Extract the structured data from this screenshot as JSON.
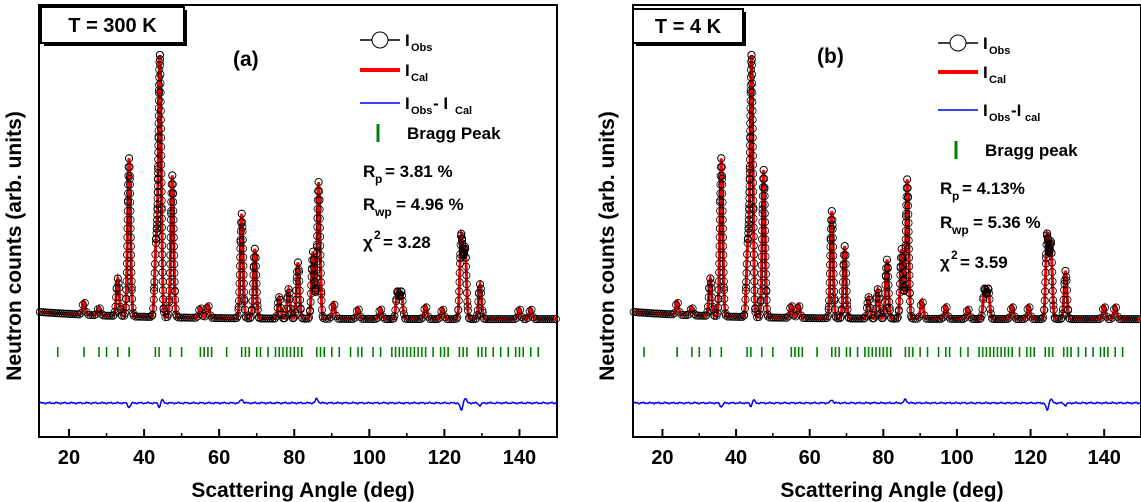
{
  "chart_data": [
    {
      "type": "line",
      "panel_label": "(a)",
      "temperature_label": "T = 300 K",
      "xlabel": "Scattering Angle (deg)",
      "ylabel": "Neutron counts (arb. units)",
      "xlim": [
        12,
        150
      ],
      "xticks": [
        20,
        40,
        60,
        80,
        100,
        120,
        140
      ],
      "legend": {
        "obs": "I",
        "obs_sub": "Obs",
        "cal": "I",
        "cal_sub": "Cal",
        "diff_a": "I",
        "diff_a_sub": "Obs",
        "diff_sep": "- I",
        "diff_b_sub": "Cal",
        "bragg": "Bragg Peak"
      },
      "stats": {
        "rp_label": "R",
        "rp_sub": "p",
        "rp_value": "= 3.81 %",
        "rwp_label": "R",
        "rwp_sub": "wp",
        "rwp_value": "= 4.96 %",
        "chi_label": "χ",
        "chi_sup": "2",
        "chi_value": "= 3.28"
      },
      "baseline": 0.06,
      "peaks": [
        {
          "x": 24.0,
          "h": 0.05
        },
        {
          "x": 28.0,
          "h": 0.03
        },
        {
          "x": 33.0,
          "h": 0.14
        },
        {
          "x": 36.0,
          "h": 0.59
        },
        {
          "x": 43.2,
          "h": 0.26
        },
        {
          "x": 44.2,
          "h": 0.97
        },
        {
          "x": 47.5,
          "h": 0.53
        },
        {
          "x": 55.0,
          "h": 0.04
        },
        {
          "x": 57.0,
          "h": 0.05
        },
        {
          "x": 66.0,
          "h": 0.39
        },
        {
          "x": 69.5,
          "h": 0.26
        },
        {
          "x": 76.0,
          "h": 0.08
        },
        {
          "x": 78.5,
          "h": 0.11
        },
        {
          "x": 81.0,
          "h": 0.21
        },
        {
          "x": 85.0,
          "h": 0.25
        },
        {
          "x": 86.5,
          "h": 0.51
        },
        {
          "x": 90.5,
          "h": 0.06
        },
        {
          "x": 97.0,
          "h": 0.04
        },
        {
          "x": 103.0,
          "h": 0.04
        },
        {
          "x": 107.5,
          "h": 0.1
        },
        {
          "x": 108.5,
          "h": 0.1
        },
        {
          "x": 115.0,
          "h": 0.05
        },
        {
          "x": 119.5,
          "h": 0.04
        },
        {
          "x": 124.5,
          "h": 0.31
        },
        {
          "x": 125.5,
          "h": 0.26
        },
        {
          "x": 129.5,
          "h": 0.13
        },
        {
          "x": 140.0,
          "h": 0.04
        },
        {
          "x": 143.0,
          "h": 0.04
        }
      ],
      "bragg_positions": [
        17,
        24,
        28,
        30,
        33,
        36,
        43,
        44,
        47,
        50,
        55,
        56,
        57,
        58,
        62,
        66,
        67,
        68,
        70,
        71,
        73,
        75,
        76,
        77,
        78,
        79,
        80,
        81,
        82,
        86,
        87,
        88,
        90,
        92,
        95,
        97,
        98,
        101,
        103,
        106,
        107,
        108,
        109,
        110,
        111,
        112,
        113,
        114,
        115,
        117,
        119,
        120,
        121,
        124,
        125,
        126,
        129,
        130,
        131,
        133,
        135,
        137,
        139,
        140,
        141,
        143,
        145
      ],
      "diff_peaks": [
        {
          "x": 36.0,
          "d": -0.035
        },
        {
          "x": 44.2,
          "d": -0.05
        },
        {
          "x": 44.6,
          "d": 0.045
        },
        {
          "x": 66.0,
          "d": 0.03
        },
        {
          "x": 86.0,
          "d": 0.035
        },
        {
          "x": 124.5,
          "d": -0.06
        },
        {
          "x": 125.5,
          "d": 0.04
        },
        {
          "x": 129.5,
          "d": -0.02
        }
      ]
    },
    {
      "type": "line",
      "panel_label": "(b)",
      "temperature_label": "T = 4 K",
      "xlabel": "Scattering Angle (deg)",
      "ylabel": "Neutron counts (arb. units)",
      "xlim": [
        12,
        150
      ],
      "xticks": [
        20,
        40,
        60,
        80,
        100,
        120,
        140
      ],
      "legend": {
        "obs": "I",
        "obs_sub": "Obs",
        "cal": "I",
        "cal_sub": "Cal",
        "diff_a": "I",
        "diff_a_sub": "Obs",
        "diff_sep": "-I",
        "diff_b_sub": "cal",
        "bragg": "Bragg peak"
      },
      "stats": {
        "rp_label": "R",
        "rp_sub": "p",
        "rp_value": "= 4.13%",
        "rwp_label": "R",
        "rwp_sub": "wp",
        "rwp_value": "= 5.36 %",
        "chi_label": "χ",
        "chi_sup": "2",
        "chi_value": "= 3.59"
      },
      "baseline": 0.06,
      "peaks": [
        {
          "x": 24.0,
          "h": 0.05
        },
        {
          "x": 28.0,
          "h": 0.03
        },
        {
          "x": 33.0,
          "h": 0.14
        },
        {
          "x": 36.0,
          "h": 0.59
        },
        {
          "x": 43.2,
          "h": 0.26
        },
        {
          "x": 44.2,
          "h": 0.97
        },
        {
          "x": 47.5,
          "h": 0.55
        },
        {
          "x": 55.0,
          "h": 0.05
        },
        {
          "x": 57.0,
          "h": 0.05
        },
        {
          "x": 66.0,
          "h": 0.4
        },
        {
          "x": 69.5,
          "h": 0.27
        },
        {
          "x": 76.0,
          "h": 0.08
        },
        {
          "x": 78.5,
          "h": 0.11
        },
        {
          "x": 81.0,
          "h": 0.22
        },
        {
          "x": 85.0,
          "h": 0.26
        },
        {
          "x": 86.5,
          "h": 0.52
        },
        {
          "x": 90.5,
          "h": 0.07
        },
        {
          "x": 97.0,
          "h": 0.05
        },
        {
          "x": 103.0,
          "h": 0.04
        },
        {
          "x": 107.5,
          "h": 0.11
        },
        {
          "x": 108.5,
          "h": 0.11
        },
        {
          "x": 115.0,
          "h": 0.05
        },
        {
          "x": 119.5,
          "h": 0.05
        },
        {
          "x": 124.5,
          "h": 0.31
        },
        {
          "x": 125.5,
          "h": 0.28
        },
        {
          "x": 129.5,
          "h": 0.18
        },
        {
          "x": 140.0,
          "h": 0.05
        },
        {
          "x": 143.0,
          "h": 0.05
        }
      ],
      "bragg_positions": [
        15,
        24,
        28,
        30,
        33,
        36,
        43,
        44,
        47,
        50,
        55,
        56,
        57,
        58,
        62,
        66,
        67,
        68,
        70,
        71,
        73,
        75,
        76,
        77,
        78,
        79,
        80,
        81,
        82,
        86,
        87,
        88,
        90,
        92,
        95,
        97,
        98,
        101,
        103,
        106,
        107,
        108,
        109,
        110,
        111,
        112,
        113,
        114,
        115,
        117,
        119,
        120,
        121,
        124,
        125,
        126,
        129,
        130,
        131,
        133,
        135,
        137,
        139,
        140,
        141,
        143,
        145
      ],
      "diff_peaks": [
        {
          "x": 36.0,
          "d": -0.03
        },
        {
          "x": 44.2,
          "d": -0.04
        },
        {
          "x": 44.6,
          "d": 0.04
        },
        {
          "x": 66.0,
          "d": 0.025
        },
        {
          "x": 86.0,
          "d": 0.03
        },
        {
          "x": 124.5,
          "d": -0.06
        },
        {
          "x": 125.5,
          "d": 0.035
        },
        {
          "x": 129.5,
          "d": -0.02
        }
      ]
    }
  ],
  "colors": {
    "obs": "#000000",
    "cal": "#ff0000",
    "diff": "#0000ff",
    "bragg": "#008000"
  }
}
